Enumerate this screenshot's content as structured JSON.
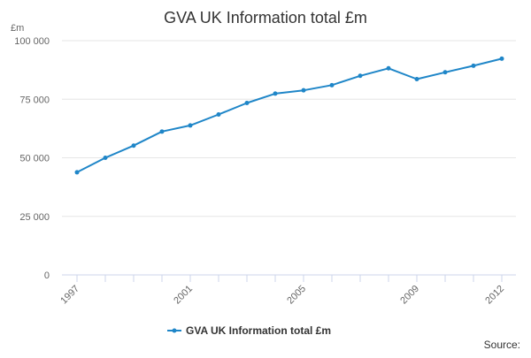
{
  "chart_data": {
    "type": "line",
    "title": "GVA UK Information total £m",
    "ylabel": "£m",
    "xlabel": "",
    "ylim": [
      0,
      100000
    ],
    "y_ticks": [
      0,
      25000,
      50000,
      75000,
      100000
    ],
    "y_tick_labels": [
      "0",
      "25 000",
      "50 000",
      "75 000",
      "100 000"
    ],
    "x": [
      1997,
      1998,
      1999,
      2000,
      2001,
      2002,
      2003,
      2004,
      2005,
      2006,
      2007,
      2008,
      2009,
      2010,
      2011,
      2012
    ],
    "x_tick_labels": [
      "1997",
      "2001",
      "2005",
      "2009",
      "2012"
    ],
    "series": [
      {
        "name": "GVA UK Information total £m",
        "color": "#1f86c8",
        "values": [
          43800,
          50000,
          55200,
          61200,
          63800,
          68500,
          73400,
          77400,
          78800,
          81000,
          85000,
          88200,
          83600,
          86500,
          89300,
          92300
        ]
      }
    ],
    "grid": true,
    "legend": "bottom-center",
    "source": "Source:"
  }
}
